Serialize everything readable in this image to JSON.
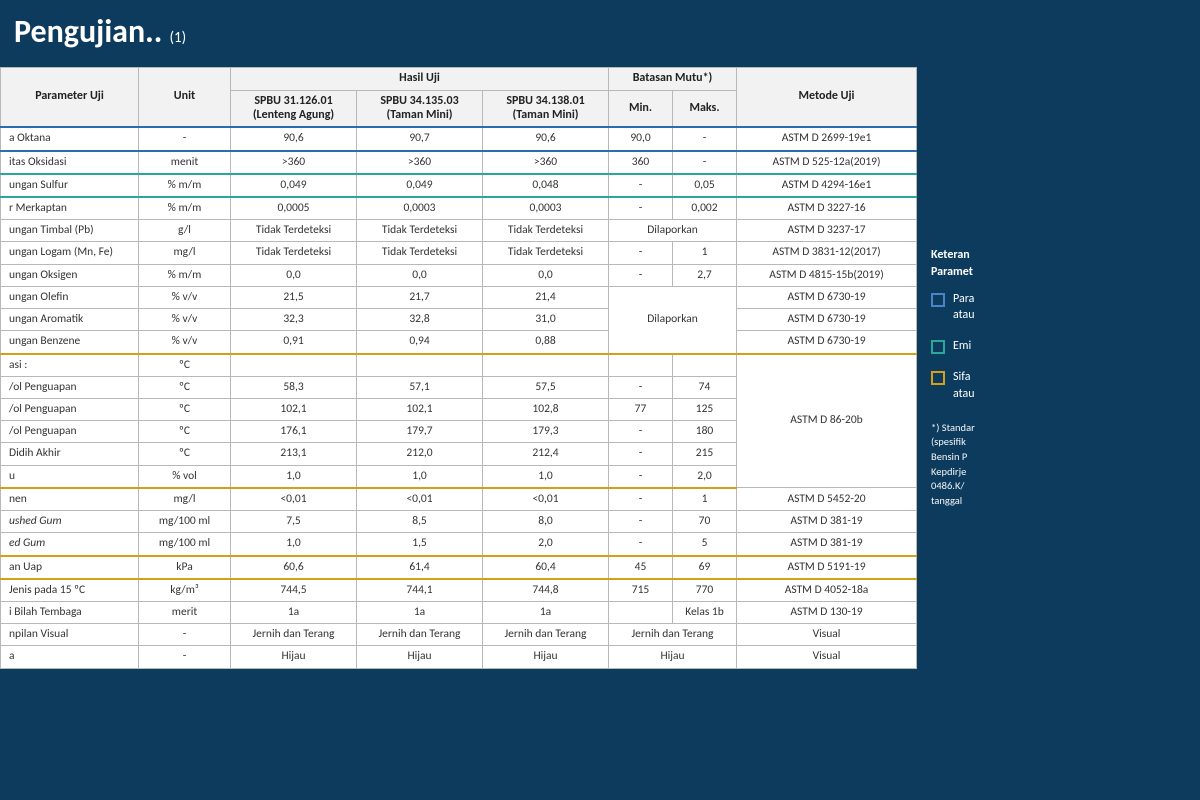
{
  "title": "Pengujian..",
  "title_suffix": "(1)",
  "header": {
    "param": "Parameter Uji",
    "unit": "Unit",
    "hasil": "Hasil Uji",
    "batasan": "Batasan Mutu*)",
    "method": "Metode Uji",
    "spbu1": "SPBU 31.126.01",
    "spbu1b": "(Lenteng Agung)",
    "spbu2": "SPBU 34.135.03",
    "spbu2b": "(Taman Mini)",
    "spbu3": "SPBU 34.138.01",
    "spbu3b": "(Taman Mini)",
    "min": "Min.",
    "max": "Maks."
  },
  "rows": [
    {
      "param": "a Oktana",
      "unit": "-",
      "s1": "90,6",
      "s2": "90,7",
      "s3": "90,6",
      "min": "90,0",
      "max": "-",
      "method": "ASTM D 2699-19e1",
      "hl": "blue"
    },
    {
      "param": "itas Oksidasi",
      "unit": "menit",
      "s1": ">360",
      "s2": ">360",
      "s3": ">360",
      "min": "360",
      "max": "-",
      "method": "ASTM D 525-12a(2019)",
      "hl": "teal"
    },
    {
      "param": "ungan Sulfur",
      "unit": "% m/m",
      "s1": "0,049",
      "s2": "0,049",
      "s3": "0,048",
      "min": "-",
      "max": "0,05",
      "method": "ASTM D 4294-16e1",
      "hl": "teal"
    },
    {
      "param": "r Merkaptan",
      "unit": "% m/m",
      "s1": "0,0005",
      "s2": "0,0003",
      "s3": "0,0003",
      "min": "-",
      "max": "0,002",
      "method": "ASTM D 3227-16"
    },
    {
      "param": "ungan Timbal (Pb)",
      "unit": "g/l",
      "s1": "Tidak Terdeteksi",
      "s2": "Tidak Terdeteksi",
      "s3": "Tidak Terdeteksi",
      "minmax": "Dilaporkan",
      "method": "ASTM D 3237-17"
    },
    {
      "param": "ungan Logam (Mn, Fe)",
      "unit": "mg/l",
      "s1": "Tidak Terdeteksi",
      "s2": "Tidak Terdeteksi",
      "s3": "Tidak Terdeteksi",
      "min": "-",
      "max": "1",
      "method": "ASTM D 3831-12(2017)"
    },
    {
      "param": "ungan Oksigen",
      "unit": "% m/m",
      "s1": "0,0",
      "s2": "0,0",
      "s3": "0,0",
      "min": "-",
      "max": "2,7",
      "method": "ASTM D 4815-15b(2019)"
    },
    {
      "param": "ungan Olefin",
      "unit": "% v/v",
      "s1": "21,5",
      "s2": "21,7",
      "s3": "21,4",
      "method": "ASTM D 6730-19",
      "merge_mm_start": 3,
      "merge_mm_text": "Dilaporkan"
    },
    {
      "param": "ungan Aromatik",
      "unit": "% v/v",
      "s1": "32,3",
      "s2": "32,8",
      "s3": "31,0",
      "method": "ASTM D 6730-19",
      "merge_mm_cont": true
    },
    {
      "param": "ungan Benzene",
      "unit": "% v/v",
      "s1": "0,91",
      "s2": "0,94",
      "s3": "0,88",
      "method": "ASTM D 6730-19",
      "merge_mm_cont": true
    },
    {
      "param": "asi :",
      "unit": "ºC",
      "s1": "",
      "s2": "",
      "s3": "",
      "min": "",
      "max": "",
      "method_merge_start": 6,
      "method_merge_text": "ASTM D 86-20b",
      "hl": "gold-top"
    },
    {
      "param": "/ol Penguapan",
      "unit": "ºC",
      "s1": "58,3",
      "s2": "57,1",
      "s3": "57,5",
      "min": "-",
      "max": "74",
      "method_cont": true
    },
    {
      "param": "/ol Penguapan",
      "unit": "ºC",
      "s1": "102,1",
      "s2": "102,1",
      "s3": "102,8",
      "min": "77",
      "max": "125",
      "method_cont": true
    },
    {
      "param": "/ol Penguapan",
      "unit": "ºC",
      "s1": "176,1",
      "s2": "179,7",
      "s3": "179,3",
      "min": "-",
      "max": "180",
      "method_cont": true
    },
    {
      "param": "Didih Akhir",
      "unit": "ºC",
      "s1": "213,1",
      "s2": "212,0",
      "s3": "212,4",
      "min": "-",
      "max": "215",
      "method_cont": true
    },
    {
      "param": "u",
      "unit": "% vol",
      "s1": "1,0",
      "s2": "1,0",
      "s3": "1,0",
      "min": "-",
      "max": "2,0",
      "method_cont": true,
      "hl": "gold-bot"
    },
    {
      "param": "nen",
      "unit": "mg/l",
      "s1": "<0,01",
      "s2": "<0,01",
      "s3": "<0,01",
      "min": "-",
      "max": "1",
      "method": "ASTM D 5452-20"
    },
    {
      "param": "ushed Gum",
      "unit": "mg/100 ml",
      "s1": "7,5",
      "s2": "8,5",
      "s3": "8,0",
      "min": "-",
      "max": "70",
      "method": "ASTM D 381-19",
      "italic": true
    },
    {
      "param": "ed Gum",
      "unit": "mg/100 ml",
      "s1": "1,0",
      "s2": "1,5",
      "s3": "2,0",
      "min": "-",
      "max": "5",
      "method": "ASTM D 381-19",
      "italic": true
    },
    {
      "param": "an Uap",
      "unit": "kPa",
      "s1": "60,6",
      "s2": "61,4",
      "s3": "60,4",
      "min": "45",
      "max": "69",
      "method": "ASTM D 5191-19",
      "hl": "gold"
    },
    {
      "param": "Jenis pada 15 ºC",
      "unit": "kg/m³",
      "s1": "744,5",
      "s2": "744,1",
      "s3": "744,8",
      "min": "715",
      "max": "770",
      "method": "ASTM D 4052-18a"
    },
    {
      "param": "i Bilah Tembaga",
      "unit": "merit",
      "s1": "1a",
      "s2": "1a",
      "s3": "1a",
      "min": "",
      "max": "Kelas 1b",
      "method": "ASTM D 130-19"
    },
    {
      "param": "npilan Visual",
      "unit": "-",
      "s1": "Jernih dan Terang",
      "s2": "Jernih dan Terang",
      "s3": "Jernih dan Terang",
      "minmax": "Jernih dan Terang",
      "method": "Visual"
    },
    {
      "param": "a",
      "unit": "-",
      "s1": "Hijau",
      "s2": "Hijau",
      "s3": "Hijau",
      "minmax": "Hijau",
      "method": "Visual"
    }
  ],
  "side": {
    "heading1": "Keteran",
    "heading2": "Paramet",
    "legend": [
      {
        "color": "blue",
        "t1": "Para",
        "t2": "atau"
      },
      {
        "color": "teal",
        "t1": "Emi",
        "t2": ""
      },
      {
        "color": "gold",
        "t1": "Sifa",
        "t2": "atau"
      }
    ],
    "note_lines": [
      "*) Standar",
      "(spesifik",
      "Bensin P",
      "Kepdirje",
      "0486.K/",
      "tanggal"
    ]
  },
  "colors": {
    "page_bg": "#0d3b5e",
    "table_bg": "#ffffff",
    "header_bg": "#f2f2f2",
    "border": "#b8b8b8",
    "hl_blue": "#2b6cb0",
    "hl_teal": "#2aa79b",
    "hl_gold": "#d4a017",
    "title": "#ffffff"
  }
}
